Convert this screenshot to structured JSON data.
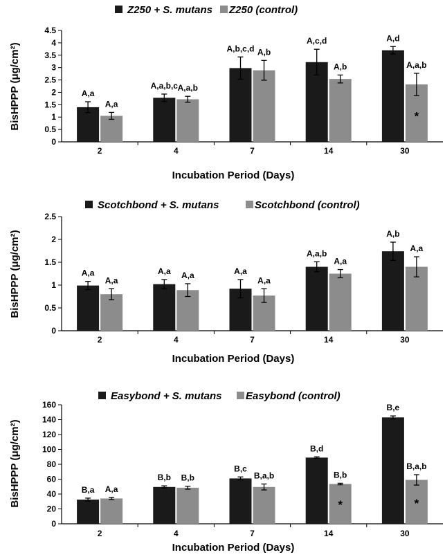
{
  "colors": {
    "series1": "#1a1a1a",
    "series2": "#8c8c8c",
    "axis": "#000000"
  },
  "chart_data": [
    {
      "type": "bar",
      "title": "",
      "xlabel": "Incubation Period (Days)",
      "ylabel": "BisHPPP (μg/cm²)",
      "ylim": [
        0,
        4.5
      ],
      "yticks": [
        "0",
        "0.5",
        "1",
        "1.5",
        "2",
        "2.5",
        "3",
        "3.5",
        "4",
        "4.5"
      ],
      "categories": [
        "2",
        "4",
        "7",
        "14",
        "30"
      ],
      "series": [
        {
          "name": "Z250 + S. mutans",
          "values": [
            1.4,
            1.78,
            2.98,
            3.22,
            3.7
          ],
          "errors": [
            0.22,
            0.15,
            0.45,
            0.52,
            0.15
          ],
          "labels": [
            "A,a",
            "A,a,b,c",
            "A,b,c,d",
            "A,c,d",
            "A,d"
          ],
          "marks": [
            "",
            "",
            "",
            "",
            ""
          ]
        },
        {
          "name": "Z250 (control)",
          "values": [
            1.05,
            1.72,
            2.89,
            2.54,
            2.32
          ],
          "errors": [
            0.14,
            0.12,
            0.4,
            0.16,
            0.45
          ],
          "labels": [
            "A,a",
            "A,a,b",
            "A,b",
            "A,b",
            "A,a,b"
          ],
          "marks": [
            "",
            "",
            "",
            "",
            "*"
          ]
        }
      ]
    },
    {
      "type": "bar",
      "title": "",
      "xlabel": "Incubation Period  (Days)",
      "ylabel": "BisHPPP (μg/cm²)",
      "ylim": [
        0,
        2.5
      ],
      "yticks": [
        "0",
        "0.5",
        "1",
        "1.5",
        "2",
        "2.5"
      ],
      "categories": [
        "2",
        "4",
        "7",
        "14",
        "30"
      ],
      "series": [
        {
          "name": "Scotchbond + S. mutans",
          "values": [
            0.99,
            1.02,
            0.92,
            1.4,
            1.74
          ],
          "errors": [
            0.09,
            0.1,
            0.2,
            0.11,
            0.2
          ],
          "labels": [
            "A,a",
            "A,a",
            "A,a",
            "A,a,b",
            "A,b"
          ],
          "marks": [
            "",
            "",
            "",
            "",
            ""
          ]
        },
        {
          "name": "Scotchbond (control)",
          "values": [
            0.8,
            0.89,
            0.77,
            1.25,
            1.4
          ],
          "errors": [
            0.12,
            0.14,
            0.15,
            0.09,
            0.22
          ],
          "labels": [
            "A,a",
            "A,a",
            "A,a",
            "A,a",
            "A,a"
          ],
          "marks": [
            "",
            "",
            "",
            "",
            ""
          ]
        }
      ]
    },
    {
      "type": "bar",
      "title": "",
      "xlabel": "Incubation Period  (Days)",
      "ylabel": "BisHPPP (μg/cm²)",
      "ylim": [
        0,
        160
      ],
      "yticks": [
        "0",
        "20",
        "40",
        "60",
        "80",
        "100",
        "120",
        "140",
        "160"
      ],
      "categories": [
        "2",
        "4",
        "7",
        "14",
        "30"
      ],
      "series": [
        {
          "name": "Easybond + S. mutans",
          "values": [
            32.5,
            49.5,
            61,
            89,
            143
          ],
          "errors": [
            2,
            1.5,
            2,
            1,
            2
          ],
          "labels": [
            "B,a",
            "B,b",
            "B,c",
            "B,d",
            "B,e"
          ],
          "marks": [
            "",
            "",
            "",
            "",
            ""
          ]
        },
        {
          "name": "Easybond (control)",
          "values": [
            34,
            48.5,
            49.5,
            53.5,
            59
          ],
          "errors": [
            1.5,
            2,
            4,
            1,
            7
          ],
          "labels": [
            "A,a",
            "B,b",
            "B,a,b",
            "B,b",
            "B,a,b"
          ],
          "marks": [
            "",
            "",
            "",
            "*",
            "*"
          ]
        }
      ]
    }
  ]
}
